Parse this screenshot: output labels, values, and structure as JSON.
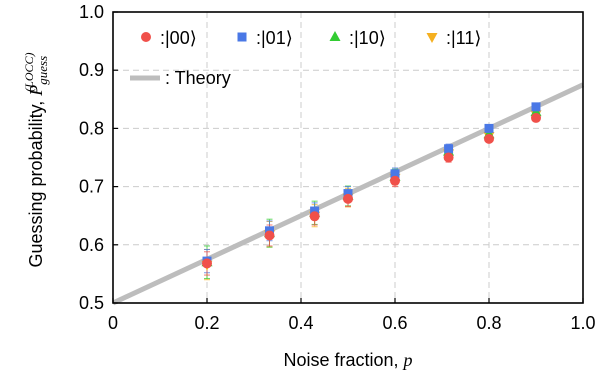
{
  "chart_data": {
    "type": "scatter",
    "xlabel": "Noise fraction, p",
    "xlabel_parts": {
      "text": "Noise fraction, ",
      "var": "p"
    },
    "ylabel": "Guessing probability, P_guess^(LOCC)",
    "ylabel_parts": {
      "text": "Guessing probability, ",
      "var": "P",
      "sub": "guess",
      "sup": "(LOCC)"
    },
    "xlim": [
      0,
      1.0
    ],
    "ylim": [
      0.5,
      1.0
    ],
    "x_ticks": [
      "0",
      "0.2",
      "0.4",
      "0.6",
      "0.8",
      "1.0"
    ],
    "x_tick_values": [
      0,
      0.2,
      0.4,
      0.6,
      0.8,
      1.0
    ],
    "y_ticks": [
      "0.5",
      "0.6",
      "0.7",
      "0.8",
      "0.9",
      "1.0"
    ],
    "y_tick_values": [
      0.5,
      0.6,
      0.7,
      0.8,
      0.9,
      1.0
    ],
    "grid": true,
    "legend_placement": "top-left",
    "x": [
      0.2,
      0.333,
      0.429,
      0.5,
      0.6,
      0.714,
      0.8,
      0.9
    ],
    "series": [
      {
        "name": ":|00⟩",
        "marker": "circle",
        "color": "#f0504a",
        "values": [
          0.568,
          0.616,
          0.649,
          0.679,
          0.71,
          0.75,
          0.782,
          0.818
        ],
        "errors": [
          0.02,
          0.018,
          0.015,
          0.013,
          0.01,
          0.008,
          0.006,
          0.004
        ]
      },
      {
        "name": ":|01⟩",
        "marker": "square",
        "color": "#4a78e6",
        "values": [
          0.572,
          0.624,
          0.658,
          0.688,
          0.722,
          0.765,
          0.8,
          0.837
        ],
        "errors": [
          0.02,
          0.017,
          0.014,
          0.012,
          0.01,
          0.008,
          0.006,
          0.004
        ]
      },
      {
        "name": ":|10⟩",
        "marker": "triangle-up",
        "color": "#33cc33",
        "values": [
          0.57,
          0.62,
          0.655,
          0.684,
          0.717,
          0.76,
          0.79,
          0.828
        ],
        "errors": [
          0.028,
          0.024,
          0.02,
          0.017,
          0.013,
          0.01,
          0.008,
          0.005
        ]
      },
      {
        "name": ":|11⟩",
        "marker": "triangle-down",
        "color": "#f5b020",
        "values": [
          0.566,
          0.618,
          0.65,
          0.681,
          0.715,
          0.757,
          0.787,
          0.824
        ],
        "errors": [
          0.026,
          0.022,
          0.019,
          0.016,
          0.012,
          0.01,
          0.007,
          0.005
        ]
      }
    ],
    "theory": {
      "name": ": Theory",
      "color": "#bdbdbd",
      "x": [
        0,
        1.0
      ],
      "y": [
        0.5,
        0.875
      ]
    }
  }
}
